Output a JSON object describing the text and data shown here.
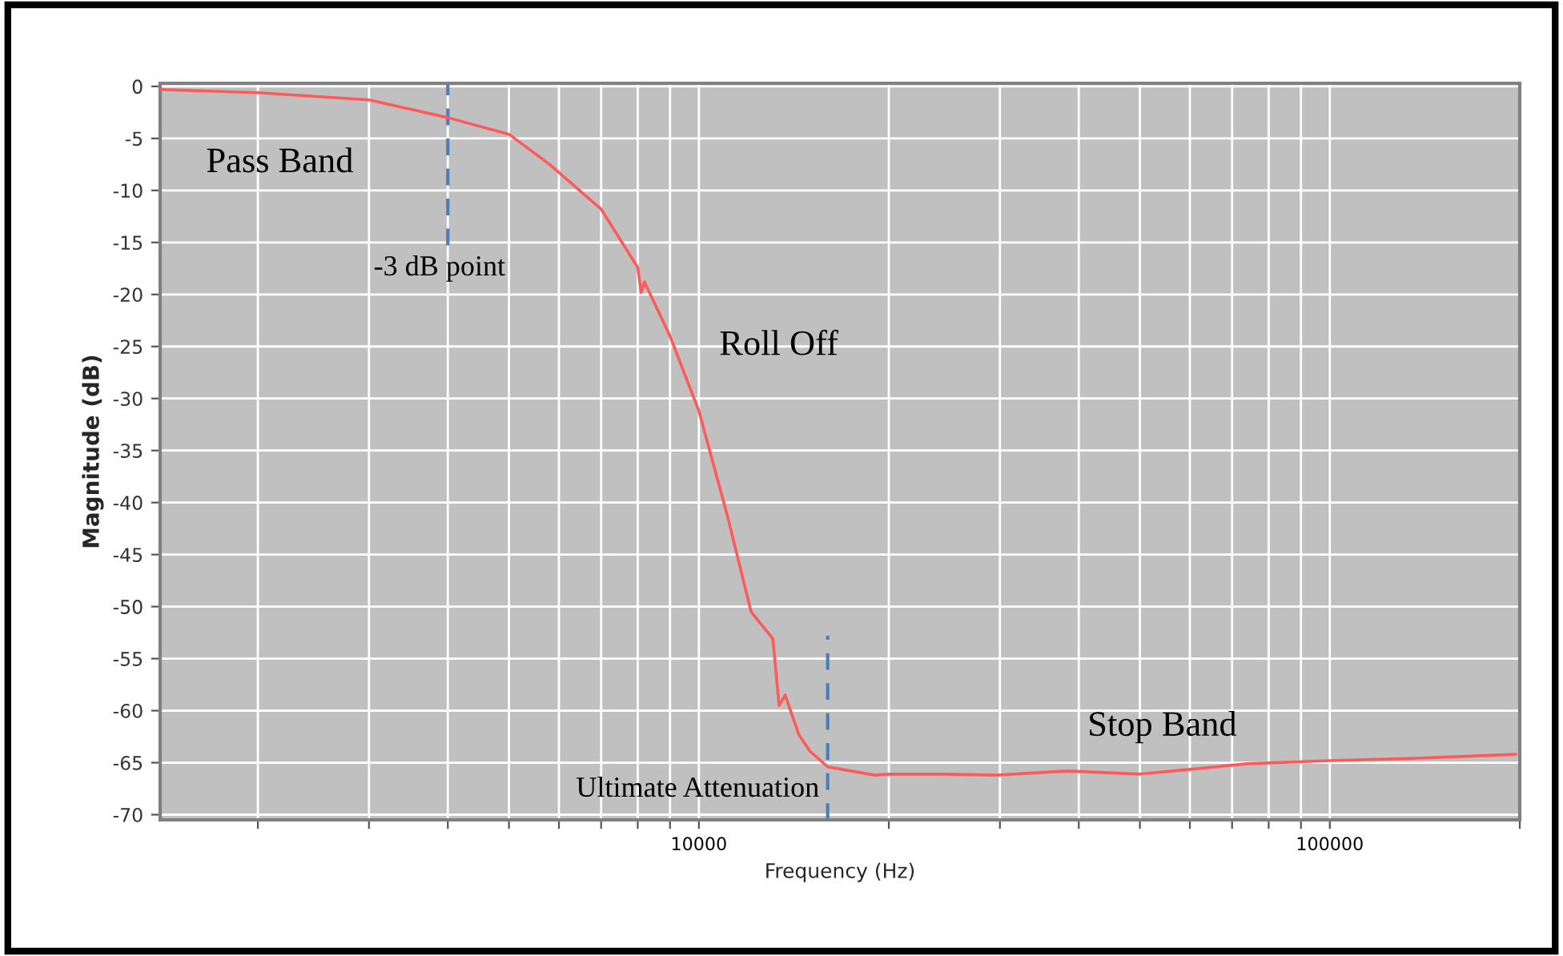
{
  "chart_data": {
    "type": "line",
    "xlabel": "Frequency (Hz)",
    "ylabel": "Magnitude (dB)",
    "log": "x",
    "grid": true,
    "marker": "none",
    "line_style": "solid",
    "xlim": [
      1400,
      200000
    ],
    "ylim": [
      -70.5,
      0.3
    ],
    "xticks": [
      {
        "value": 2000,
        "label": null
      },
      {
        "value": 3000,
        "label": null
      },
      {
        "value": 4000,
        "label": null
      },
      {
        "value": 5000,
        "label": null
      },
      {
        "value": 6000,
        "label": null
      },
      {
        "value": 7000,
        "label": null
      },
      {
        "value": 8000,
        "label": null
      },
      {
        "value": 9000,
        "label": null
      },
      10000,
      {
        "value": 20000,
        "label": null
      },
      {
        "value": 30000,
        "label": null
      },
      {
        "value": 40000,
        "label": null
      },
      {
        "value": 50000,
        "label": null
      },
      {
        "value": 60000,
        "label": null
      },
      {
        "value": 70000,
        "label": null
      },
      {
        "value": 80000,
        "label": null
      },
      {
        "value": 90000,
        "label": null
      },
      100000,
      {
        "value": 200000,
        "label": null
      }
    ],
    "yticks": [
      -70,
      -65,
      -60,
      -55,
      -50,
      -45,
      -40,
      -35,
      -30,
      -25,
      -20,
      -15,
      -10,
      -5,
      0
    ],
    "series": [
      {
        "color": "#ff5a5a",
        "x": [
          1400,
          2000,
          3000,
          4000,
          5000,
          5800,
          7000,
          8000,
          8100,
          8200,
          9000,
          10000,
          11100,
          12100,
          13100,
          13400,
          13700,
          14400,
          15000,
          16000,
          19000,
          20000,
          24400,
          29700,
          38400,
          50000,
          61000,
          74000,
          100000,
          133000,
          197000
        ],
        "values": [
          -0.3,
          -0.6,
          -1.3,
          -3,
          -4.6,
          -7.5,
          -11.8,
          -17.4,
          -19.8,
          -18.8,
          -24,
          -31.2,
          -41.3,
          -50.5,
          -53.1,
          -59.5,
          -58.5,
          -62.3,
          -63.9,
          -65.4,
          -66.2,
          -66.1,
          -66.1,
          -66.2,
          -65.8,
          -66.1,
          -65.6,
          -65.1,
          -64.8,
          -64.6,
          -64.2
        ]
      }
    ],
    "ref_lines": [
      {
        "axis": "x",
        "value": 4000,
        "label": "-3 dB point",
        "color": "#4a7ebb",
        "line_style": "dashed"
      },
      {
        "axis": "x",
        "value": 16000,
        "label": "Ultimate Attenuation",
        "color": "#4a7ebb",
        "line_style": "dashed"
      }
    ],
    "annotations": [
      "Pass Band",
      "Roll Off",
      "Stop Band"
    ]
  }
}
